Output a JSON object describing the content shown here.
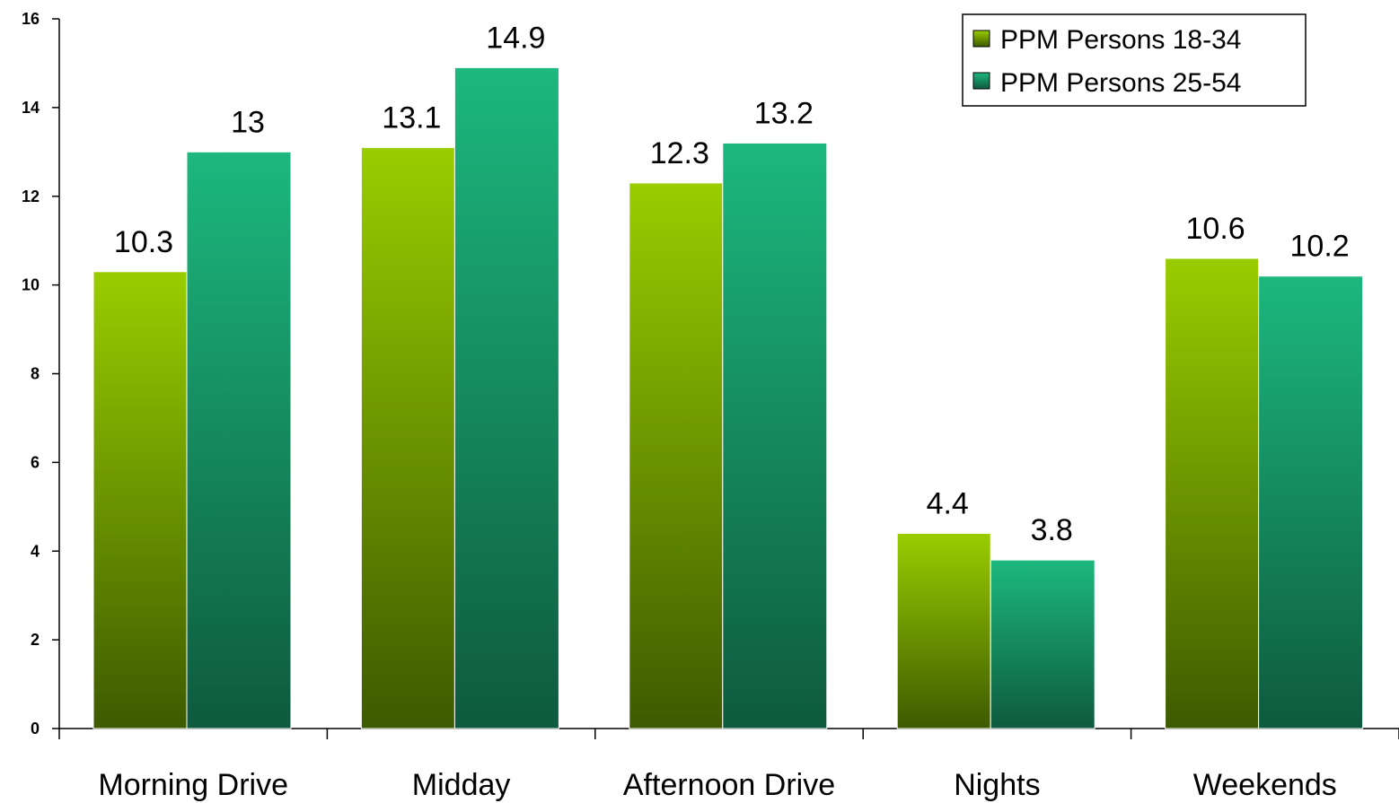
{
  "chart_data": {
    "type": "bar",
    "categories": [
      "Morning Drive",
      "Midday",
      "Afternoon Drive",
      "Nights",
      "Weekends"
    ],
    "series": [
      {
        "name": "PPM Persons 18-34",
        "values": [
          10.3,
          13.1,
          12.3,
          4.4,
          10.6
        ],
        "labels": [
          "10.3",
          "13.1",
          "12.3",
          "4.4",
          "10.6"
        ],
        "color_top": "#9ACD00",
        "color_bottom": "#3E5A00"
      },
      {
        "name": "PPM Persons 25-54",
        "values": [
          13,
          14.9,
          13.2,
          3.8,
          10.2
        ],
        "labels": [
          "13",
          "14.9",
          "13.2",
          "3.8",
          "10.2"
        ],
        "color_top": "#1CB87E",
        "color_bottom": "#0E5A3E"
      }
    ],
    "ylim": [
      0,
      16
    ],
    "yticks": [
      "0",
      "2",
      "4",
      "6",
      "8",
      "10",
      "12",
      "14",
      "16"
    ],
    "grid": false,
    "legend_position": "top-right",
    "title": "",
    "xlabel": "",
    "ylabel": ""
  }
}
